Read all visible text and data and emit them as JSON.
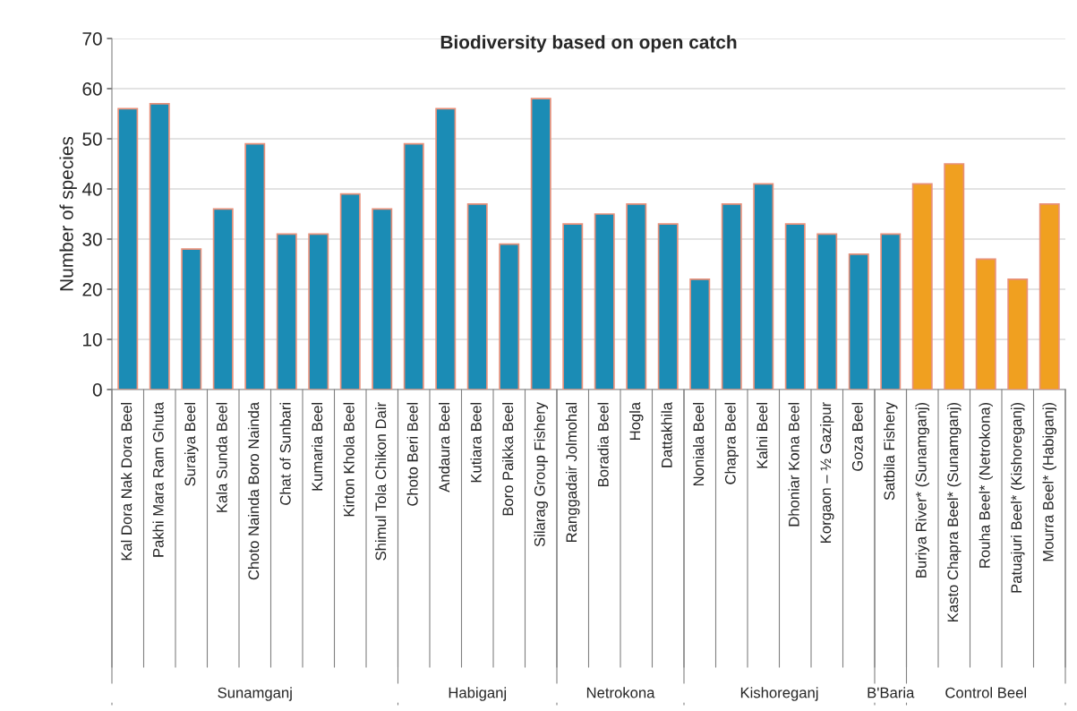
{
  "chart_data": {
    "type": "bar",
    "title": "Biodiversity based on open catch",
    "ylabel": "Number of species",
    "categories": [
      "Kal Dora Nak Dora Beel",
      "Pakhi Mara Ram Ghuta",
      "Suraiya Beel",
      "Kala Sunda Beel",
      "Choto Nainda Boro Nainda",
      "Chat of Sunbari",
      "Kumaria Beel",
      "Kirton Khola Beel",
      "Shimul Tola Chikon Dair",
      "Choto Beri Beel",
      "Andaura Beel",
      "Kutiara Beel",
      "Boro Paikka Beel",
      "Silarag Group Fishery",
      "Ranggadair Jolmohal",
      "Boradia Beel",
      "Hogla",
      "Dattakhila",
      "Noniala Beel",
      "Chapra Beel",
      "Kalni Beel",
      "Dhoniar Kona Beel",
      "Korgaon – ½ Gazipur",
      "Goza Beel",
      "Satbila Fishery",
      "Buriya River* (Sunamganj)",
      "Kasto Chapra Beel* (Sunamganj)",
      "Rouha Beel* (Netrokona)",
      "Patuajuri Beel* (Kishoreganj)",
      "Mourra Beel* (Habiganj)"
    ],
    "values": [
      56,
      57,
      28,
      36,
      49,
      31,
      31,
      39,
      36,
      49,
      56,
      37,
      29,
      58,
      33,
      35,
      37,
      33,
      22,
      37,
      41,
      33,
      31,
      27,
      31,
      41,
      45,
      26,
      22,
      37
    ],
    "colors": [
      "#1b8cb5",
      "#1b8cb5",
      "#1b8cb5",
      "#1b8cb5",
      "#1b8cb5",
      "#1b8cb5",
      "#1b8cb5",
      "#1b8cb5",
      "#1b8cb5",
      "#1b8cb5",
      "#1b8cb5",
      "#1b8cb5",
      "#1b8cb5",
      "#1b8cb5",
      "#1b8cb5",
      "#1b8cb5",
      "#1b8cb5",
      "#1b8cb5",
      "#1b8cb5",
      "#1b8cb5",
      "#1b8cb5",
      "#1b8cb5",
      "#1b8cb5",
      "#1b8cb5",
      "#1b8cb5",
      "#f0a020",
      "#f0a020",
      "#f0a020",
      "#f0a020",
      "#f0a020"
    ],
    "annotations": [
      "Sunamganj",
      "Habiganj",
      "Netrokona",
      "Kishoreganj",
      "B'Baria",
      "Control Beel"
    ],
    "ylim": [
      0,
      70
    ],
    "yticks": [
      0,
      10,
      20,
      30,
      40,
      50,
      60,
      70
    ],
    "grid": "y",
    "legend": false
  }
}
